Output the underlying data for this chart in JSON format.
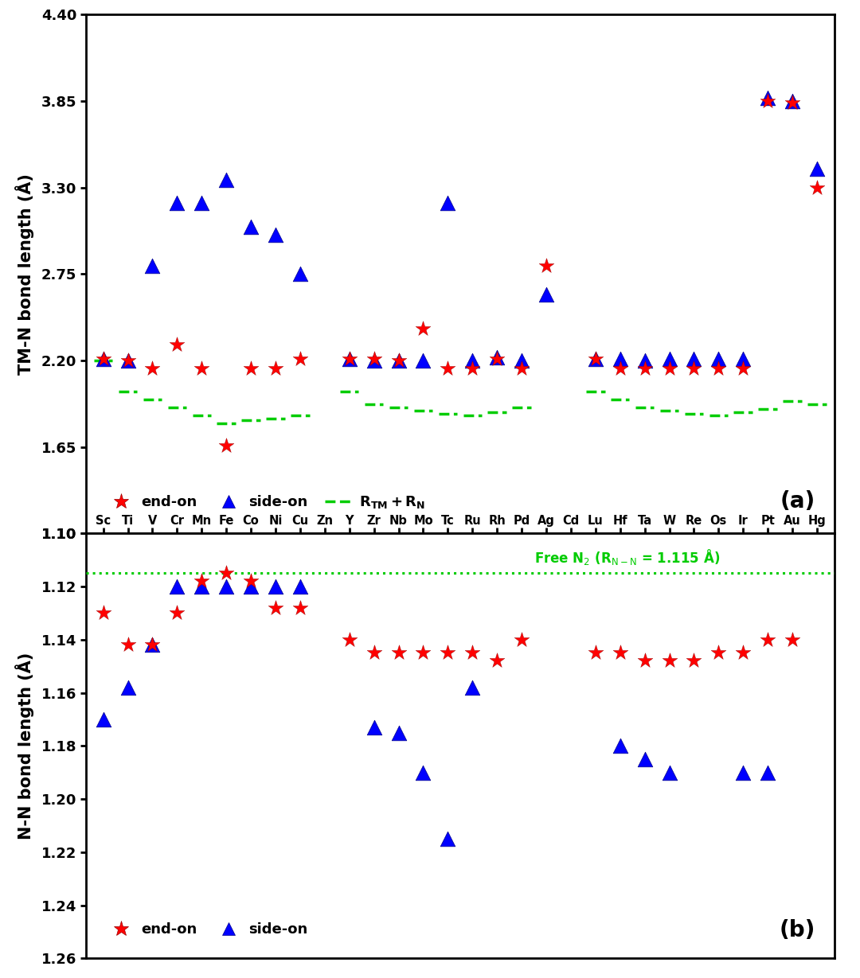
{
  "elements": [
    "Sc",
    "Ti",
    "V",
    "Cr",
    "Mn",
    "Fe",
    "Co",
    "Ni",
    "Cu",
    "Zn",
    "Y",
    "Zr",
    "Nb",
    "Mo",
    "Tc",
    "Ru",
    "Rh",
    "Pd",
    "Ag",
    "Cd",
    "Lu",
    "Hf",
    "Ta",
    "W",
    "Re",
    "Os",
    "Ir",
    "Pt",
    "Au",
    "Hg"
  ],
  "panel_a": {
    "end_on_x": [
      0,
      1,
      2,
      3,
      4,
      5,
      6,
      7,
      8,
      10,
      11,
      12,
      13,
      14,
      15,
      16,
      17,
      18,
      20,
      21,
      22,
      23,
      24,
      25,
      26,
      27,
      28,
      29
    ],
    "end_on_y": [
      2.21,
      2.2,
      2.15,
      2.3,
      2.15,
      1.66,
      2.15,
      2.15,
      2.21,
      2.21,
      2.21,
      2.2,
      2.4,
      2.15,
      2.15,
      2.21,
      2.15,
      2.8,
      2.21,
      2.15,
      2.15,
      2.15,
      2.15,
      2.15,
      2.15,
      3.85,
      3.84,
      3.3
    ],
    "side_on_x": [
      0,
      1,
      2,
      3,
      4,
      5,
      6,
      7,
      8,
      10,
      11,
      12,
      13,
      14,
      15,
      16,
      17,
      18,
      20,
      21,
      22,
      23,
      24,
      25,
      26,
      27,
      28,
      29
    ],
    "side_on_y": [
      2.21,
      2.2,
      2.8,
      3.2,
      3.2,
      3.35,
      3.05,
      3.0,
      2.75,
      2.21,
      2.2,
      2.2,
      2.2,
      3.2,
      2.2,
      2.22,
      2.2,
      2.62,
      2.21,
      2.21,
      2.2,
      2.21,
      2.21,
      2.21,
      2.21,
      3.87,
      3.85,
      3.42
    ],
    "rtm_rn_x": [
      0,
      1,
      2,
      3,
      4,
      5,
      6,
      7,
      8,
      10,
      11,
      12,
      13,
      14,
      15,
      16,
      17,
      20,
      21,
      22,
      23,
      24,
      25,
      26,
      27,
      28,
      29
    ],
    "rtm_rn_y": [
      2.2,
      2.0,
      1.95,
      1.9,
      1.85,
      1.8,
      1.82,
      1.83,
      1.85,
      2.0,
      1.92,
      1.9,
      1.88,
      1.86,
      1.85,
      1.87,
      1.9,
      2.0,
      1.95,
      1.9,
      1.88,
      1.86,
      1.85,
      1.87,
      1.89,
      1.94,
      1.92
    ],
    "ylim": [
      1.1,
      4.4
    ],
    "yticks": [
      1.1,
      1.65,
      2.2,
      2.75,
      3.3,
      3.85,
      4.4
    ],
    "ylabel": "TM-N bond length (Å)"
  },
  "panel_b": {
    "end_on_x": [
      0,
      1,
      2,
      3,
      4,
      5,
      6,
      7,
      8,
      10,
      11,
      12,
      13,
      14,
      15,
      16,
      17,
      20,
      21,
      22,
      23,
      24,
      25,
      26,
      27,
      28
    ],
    "end_on_y": [
      1.13,
      1.142,
      1.142,
      1.13,
      1.118,
      1.115,
      1.118,
      1.128,
      1.128,
      1.14,
      1.145,
      1.145,
      1.145,
      1.145,
      1.145,
      1.148,
      1.14,
      1.145,
      1.145,
      1.148,
      1.148,
      1.148,
      1.145,
      1.145,
      1.14,
      1.14
    ],
    "side_on_x": [
      0,
      1,
      2,
      3,
      4,
      5,
      6,
      7,
      8,
      11,
      12,
      13,
      14,
      15,
      21,
      22,
      23,
      26,
      27
    ],
    "side_on_y": [
      1.17,
      1.158,
      1.142,
      1.12,
      1.12,
      1.12,
      1.12,
      1.12,
      1.12,
      1.173,
      1.175,
      1.19,
      1.215,
      1.158,
      1.18,
      1.185,
      1.19,
      1.19,
      1.19
    ],
    "free_n2": 1.115,
    "ylim": [
      1.1,
      1.26
    ],
    "yticks": [
      1.1,
      1.12,
      1.14,
      1.16,
      1.18,
      1.2,
      1.22,
      1.24,
      1.26
    ],
    "ylabel": "N-N bond length (Å)",
    "free_n2_label": "Free N₂ (Rₙ₋ₙ = 1.115 Å)"
  },
  "end_on_color": "#ff0000",
  "side_on_color": "#0000ff",
  "rtm_rn_color": "#00cc00",
  "lw_axes": 2.0,
  "star_size": 200,
  "tri_size": 180
}
